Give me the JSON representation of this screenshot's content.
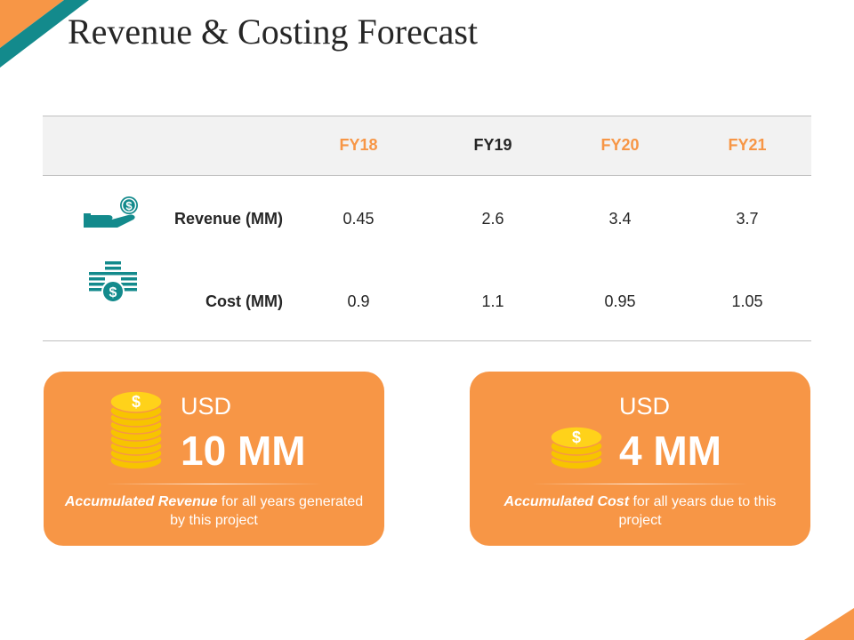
{
  "title": "Revenue & Costing Forecast",
  "colors": {
    "accent_orange": "#f79646",
    "accent_teal": "#138a8c",
    "header_gray": "#f2f2f2"
  },
  "table": {
    "headers": [
      {
        "label": "FY18",
        "color": "#f79646"
      },
      {
        "label": "FY19",
        "color": "#262626"
      },
      {
        "label": "FY20",
        "color": "#f79646"
      },
      {
        "label": "FY21",
        "color": "#f79646"
      }
    ],
    "rows": [
      {
        "label": "Revenue (MM)",
        "icon": "hand-money-icon",
        "values": [
          "0.45",
          "2.6",
          "3.4",
          "3.7"
        ]
      },
      {
        "label": "Cost (MM)",
        "icon": "money-stack-icon",
        "values": [
          "0.9",
          "1.1",
          "0.95",
          "1.05"
        ]
      }
    ]
  },
  "cards": [
    {
      "currency": "USD",
      "amount": "10 MM",
      "caption_bold": "Accumulated Revenue",
      "caption_rest": " for all years generated by this project",
      "icon": "coin-stack-icon"
    },
    {
      "currency": "USD",
      "amount": "4 MM",
      "caption_bold": "Accumulated Cost",
      "caption_rest": " for all years due to this project",
      "icon": "coin-stack-icon"
    }
  ]
}
